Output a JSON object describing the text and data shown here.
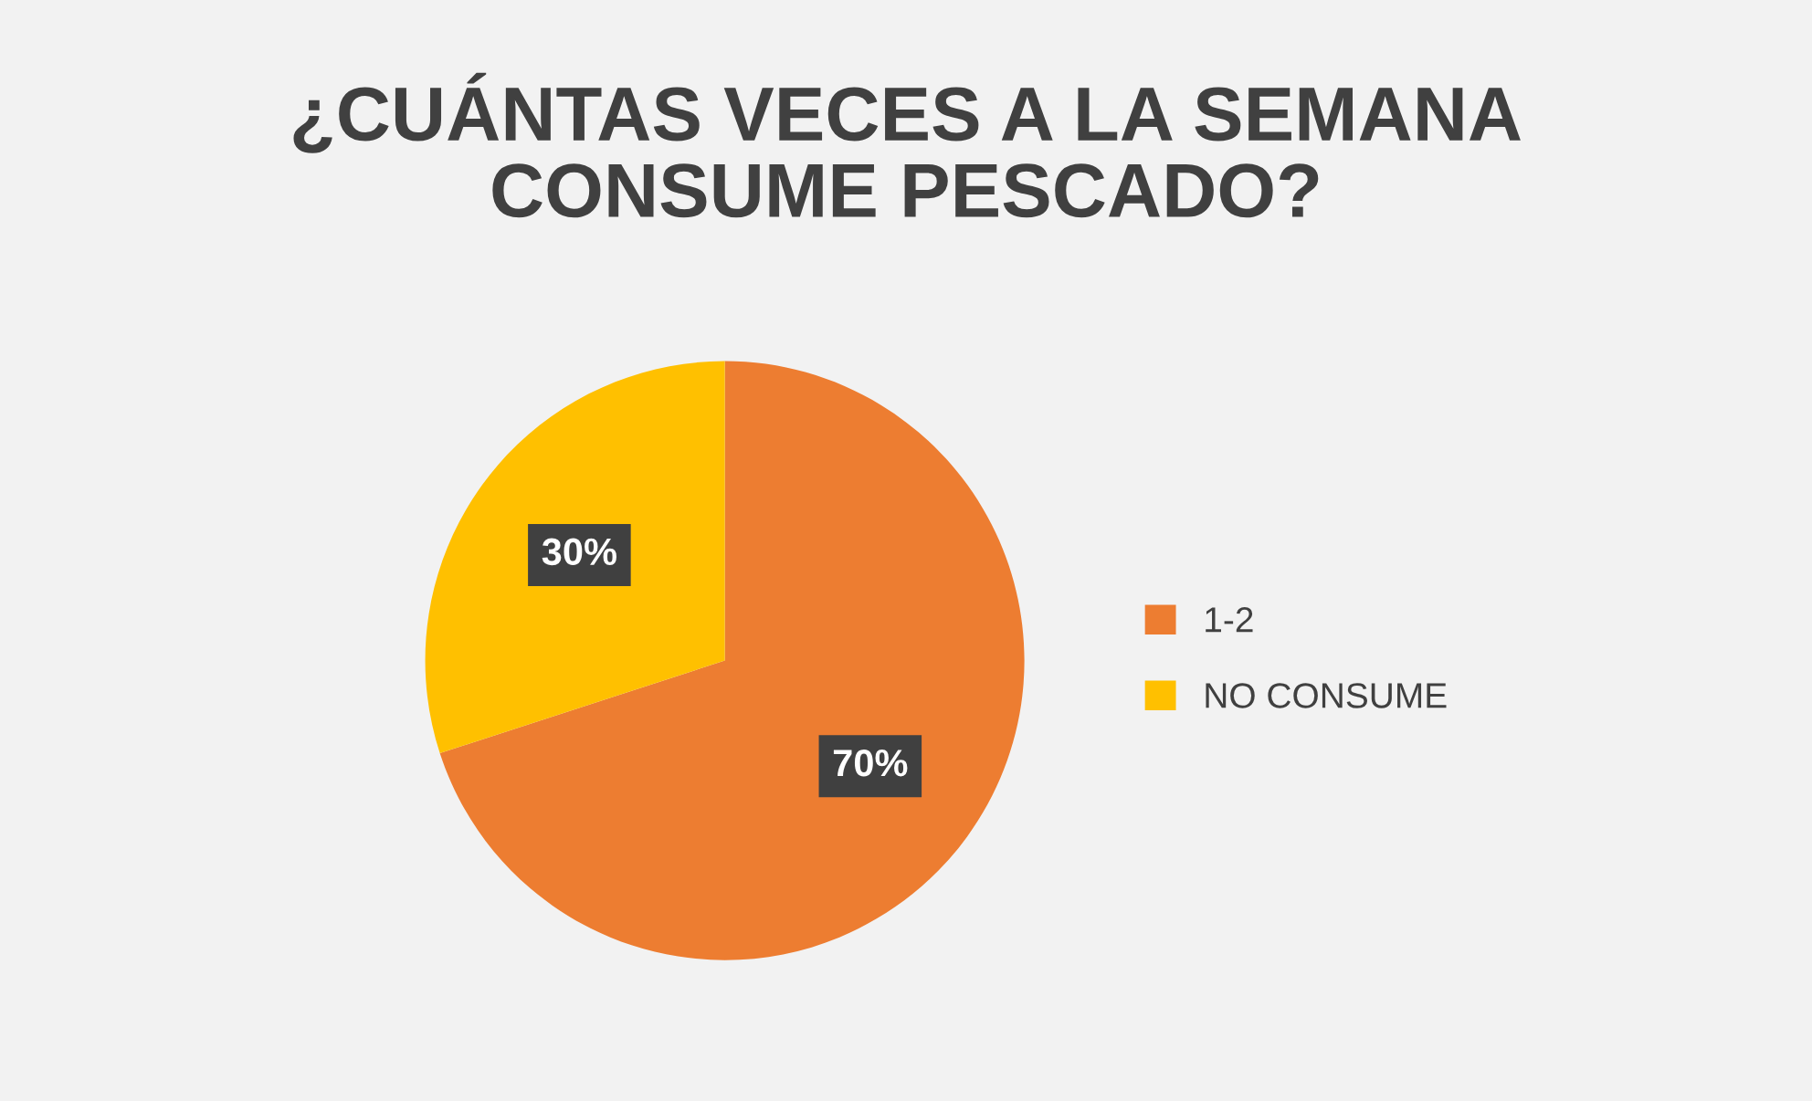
{
  "chart_data": {
    "type": "pie",
    "title": "¿CUÁNTAS VECES A LA SEMANA\nCONSUME PESCADO?",
    "categories": [
      "1-2",
      "NO CONSUME"
    ],
    "values": [
      70,
      30
    ],
    "colors": [
      "#ed7d31",
      "#ffc000"
    ],
    "value_labels": [
      "70%",
      "30%"
    ],
    "legend": "right"
  }
}
